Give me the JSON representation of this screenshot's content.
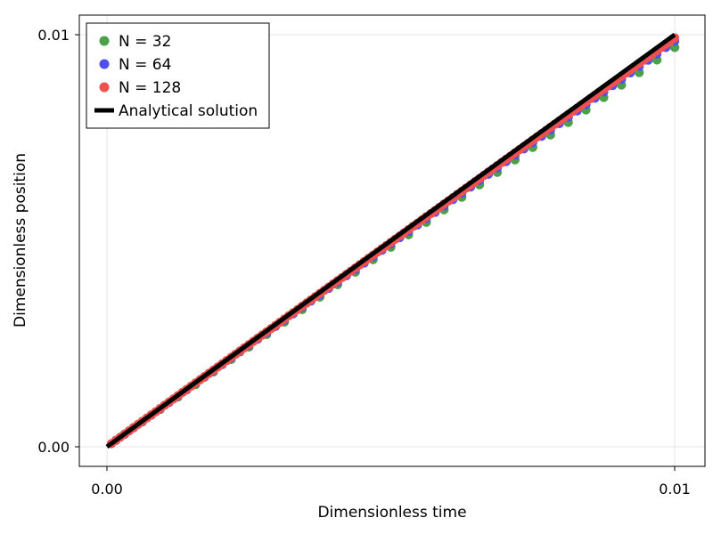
{
  "chart_data": {
    "type": "scatter",
    "xlabel": "Dimensionless time",
    "ylabel": "Dimensionless position",
    "xlim": [
      0,
      0.01
    ],
    "ylim": [
      0,
      0.01
    ],
    "x_ticks": [
      {
        "value": 0,
        "label": "0.00"
      },
      {
        "value": 0.01,
        "label": "0.01"
      }
    ],
    "y_ticks": [
      {
        "value": 0,
        "label": "0.00"
      },
      {
        "value": 0.01,
        "label": "0.01"
      }
    ],
    "grid": true,
    "legend_position": "top-left",
    "series": [
      {
        "name": "N = 32",
        "kind": "points",
        "color": "#4aa14a",
        "n": 32,
        "slope_factor": 0.969
      },
      {
        "name": "N = 64",
        "kind": "points",
        "color": "#5050f0",
        "n": 64,
        "slope_factor": 0.9845
      },
      {
        "name": "N = 128",
        "kind": "points",
        "color": "#f05050",
        "n": 128,
        "slope_factor": 0.9922
      },
      {
        "name": "Analytical solution",
        "kind": "line",
        "color": "#000000",
        "x": [
          0,
          0.01
        ],
        "y": [
          0,
          0.01
        ]
      }
    ]
  }
}
